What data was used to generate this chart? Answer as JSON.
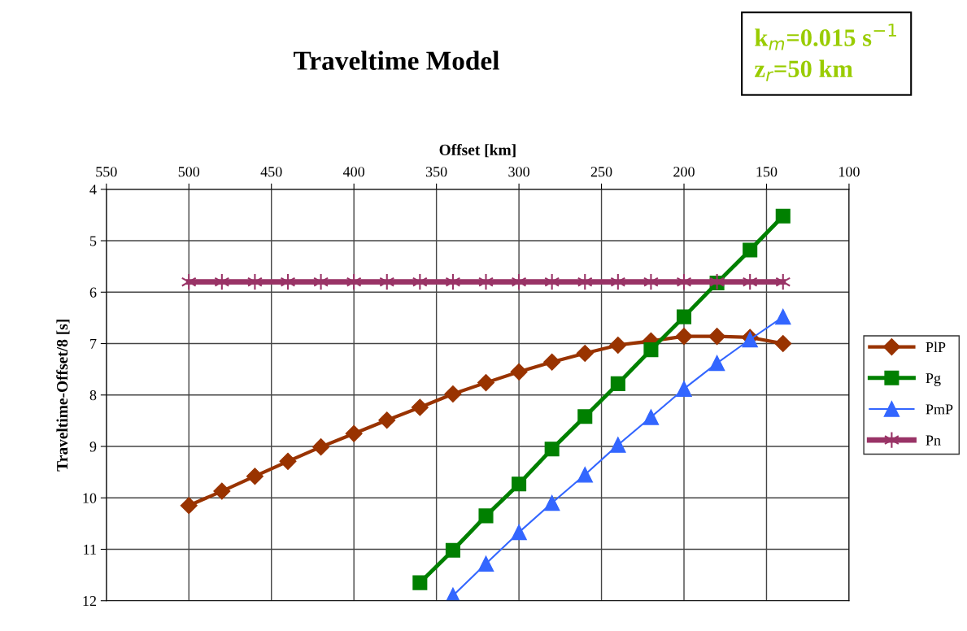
{
  "chart_data": {
    "type": "line",
    "title": "Traveltime Model",
    "xlabel": "Offset [km]",
    "ylabel": "Traveltime-Offset/8 [s]",
    "annotations": [
      "k$_{m}$=0.015 s$^{−1}$\nz$_{r}$=50 km"
    ],
    "xlim": [
      550,
      100
    ],
    "xticks": [
      550,
      500,
      450,
      400,
      350,
      300,
      250,
      200,
      150,
      100
    ],
    "ylim": [
      12,
      4
    ],
    "yticks": [
      4,
      5,
      6,
      7,
      8,
      9,
      10,
      11,
      12
    ],
    "grid": true,
    "legend": "right",
    "series": [
      {
        "name": "PlP",
        "color": "#993300",
        "marker": "diamond",
        "x": [
          500,
          480,
          460,
          440,
          420,
          400,
          380,
          360,
          340,
          320,
          300,
          280,
          260,
          240,
          220,
          200,
          180,
          160,
          140
        ],
        "values": [
          10.15,
          9.87,
          9.58,
          9.29,
          9.01,
          8.75,
          8.49,
          8.24,
          7.98,
          7.76,
          7.55,
          7.36,
          7.19,
          7.03,
          6.95,
          6.86,
          6.86,
          6.88,
          7.0
        ]
      },
      {
        "name": "Pg",
        "color": "#008000",
        "marker": "square",
        "x": [
          360,
          340,
          320,
          300,
          280,
          260,
          240,
          220,
          200,
          180,
          160,
          140
        ],
        "values": [
          11.65,
          11.02,
          10.35,
          9.73,
          9.05,
          8.42,
          7.78,
          7.12,
          6.48,
          5.82,
          5.18,
          4.52
        ]
      },
      {
        "name": "PmP",
        "color": "#3366ff",
        "marker": "triangle",
        "x": [
          340,
          320,
          300,
          280,
          260,
          240,
          220,
          200,
          180,
          160,
          140
        ],
        "values": [
          11.9,
          11.28,
          10.67,
          10.1,
          9.55,
          8.97,
          8.43,
          7.88,
          7.38,
          6.92,
          6.48
        ]
      },
      {
        "name": "Pn",
        "color": "#993366",
        "marker": "cross",
        "x": [
          500,
          480,
          460,
          440,
          420,
          400,
          380,
          360,
          340,
          320,
          300,
          280,
          260,
          240,
          220,
          200,
          180,
          160,
          140
        ],
        "values": [
          5.8,
          5.8,
          5.8,
          5.8,
          5.8,
          5.8,
          5.8,
          5.8,
          5.8,
          5.8,
          5.8,
          5.8,
          5.8,
          5.8,
          5.8,
          5.8,
          5.8,
          5.8,
          5.8
        ]
      }
    ]
  }
}
